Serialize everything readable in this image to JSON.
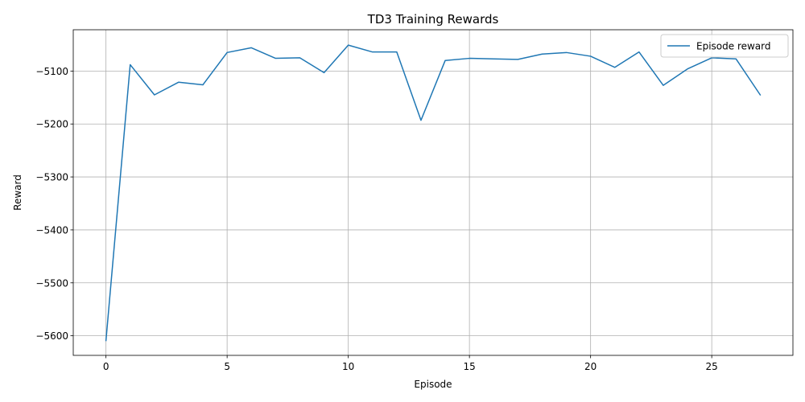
{
  "chart_data": {
    "type": "line",
    "title": "TD3 Training Rewards",
    "xlabel": "Episode",
    "ylabel": "Reward",
    "xlim": [
      -1.35,
      28.35
    ],
    "ylim": [
      -5637,
      -5022
    ],
    "xticks": [
      0,
      5,
      10,
      15,
      20,
      25
    ],
    "yticks": [
      -5600,
      -5500,
      -5400,
      -5300,
      -5200,
      -5100
    ],
    "grid": true,
    "legend_position": "upper right",
    "colors": {
      "line": "#1f77b4",
      "grid": "#b0b0b0",
      "axis": "#000000"
    },
    "series": [
      {
        "name": "Episode reward",
        "x": [
          0,
          1,
          2,
          3,
          4,
          5,
          6,
          7,
          8,
          9,
          10,
          11,
          12,
          13,
          14,
          15,
          16,
          17,
          18,
          19,
          20,
          21,
          22,
          23,
          24,
          25,
          26,
          27
        ],
        "values": [
          -5609,
          -5088,
          -5145,
          -5121,
          -5126,
          -5065,
          -5056,
          -5076,
          -5075,
          -5103,
          -5051,
          -5064,
          -5064,
          -5193,
          -5080,
          -5076,
          -5077,
          -5078,
          -5068,
          -5065,
          -5072,
          -5093,
          -5064,
          -5127,
          -5096,
          -5075,
          -5077,
          -5145
        ]
      }
    ]
  }
}
